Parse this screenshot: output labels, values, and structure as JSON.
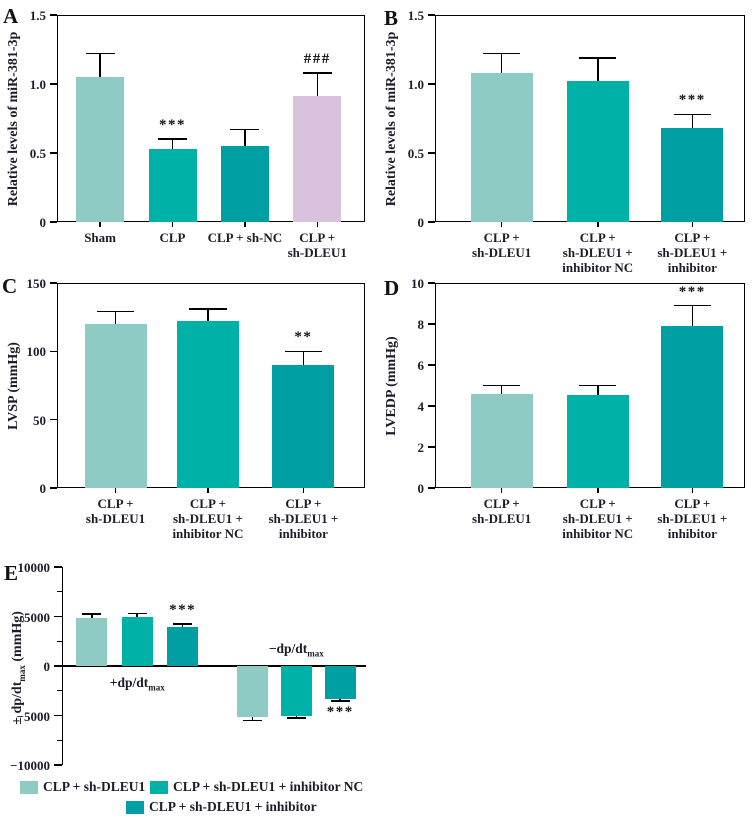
{
  "figure_title": "",
  "colors": {
    "light": "#8ecbc5",
    "teal": "#00b1a7",
    "tealDark": "#009fa3",
    "pink": "#d9c2de",
    "axis": "#000000",
    "text": "#1c1c2a",
    "sig": "#111111"
  },
  "chart_data": [
    {
      "panel": "A",
      "type": "bar",
      "title": "",
      "ylabel": "Relative levels of miR-381-3p",
      "xlabel": "",
      "ylim": [
        0,
        1.5
      ],
      "yticks": [
        0,
        0.5,
        1.0,
        1.5
      ],
      "ytick_labels": [
        "0",
        "0.5",
        "1.0",
        "1.5"
      ],
      "categories": [
        "Sham",
        "CLP",
        "CLP + sh-NC",
        "CLP + sh-DLEU1"
      ],
      "categories_lines": [
        [
          "Sham"
        ],
        [
          "CLP"
        ],
        [
          "CLP + sh-NC"
        ],
        [
          "CLP +",
          "sh-DLEU1"
        ]
      ],
      "values": [
        1.05,
        0.53,
        0.55,
        0.91
      ],
      "errors": [
        0.17,
        0.07,
        0.12,
        0.17
      ],
      "annotations": [
        "",
        "***",
        "",
        "###"
      ],
      "bar_color_keys": [
        "light",
        "teal",
        "tealDark",
        "pink"
      ]
    },
    {
      "panel": "B",
      "type": "bar",
      "title": "",
      "ylabel": "Relative levels of miR-381-3p",
      "xlabel": "",
      "ylim": [
        0,
        1.5
      ],
      "yticks": [
        0,
        0.5,
        1.0,
        1.5
      ],
      "ytick_labels": [
        "0",
        "0.5",
        "1.0",
        "1.5"
      ],
      "categories": [
        "CLP + sh-DLEU1",
        "CLP + sh-DLEU1 + inhibitor NC",
        "CLP + sh-DLEU1 + inhibitor"
      ],
      "categories_lines": [
        [
          "CLP +",
          "sh-DLEU1"
        ],
        [
          "CLP +",
          "sh-DLEU1 +",
          "inhibitor NC"
        ],
        [
          "CLP +",
          "sh-DLEU1 +",
          "inhibitor"
        ]
      ],
      "values": [
        1.08,
        1.02,
        0.68
      ],
      "errors": [
        0.14,
        0.17,
        0.1
      ],
      "annotations": [
        "",
        "",
        "***"
      ],
      "bar_color_keys": [
        "light",
        "teal",
        "tealDark"
      ]
    },
    {
      "panel": "C",
      "type": "bar",
      "title": "",
      "ylabel": "LVSP (mmHg)",
      "xlabel": "",
      "ylim": [
        0,
        150
      ],
      "yticks": [
        0,
        50,
        100,
        150
      ],
      "ytick_labels": [
        "0",
        "50",
        "100",
        "150"
      ],
      "categories": [
        "CLP + sh-DLEU1",
        "CLP + sh-DLEU1 + inhibitor NC",
        "CLP + sh-DLEU1 + inhibitor"
      ],
      "categories_lines": [
        [
          "CLP +",
          "sh-DLEU1"
        ],
        [
          "CLP +",
          "sh-DLEU1 +",
          "inhibitor NC"
        ],
        [
          "CLP +",
          "sh-DLEU1 +",
          "inhibitor"
        ]
      ],
      "values": [
        120,
        122,
        90
      ],
      "errors": [
        9,
        9,
        10
      ],
      "annotations": [
        "",
        "",
        "**"
      ],
      "bar_color_keys": [
        "light",
        "teal",
        "tealDark"
      ]
    },
    {
      "panel": "D",
      "type": "bar",
      "title": "",
      "ylabel": "LVEDP (mmHg)",
      "xlabel": "",
      "ylim": [
        0,
        10
      ],
      "yticks": [
        0,
        2,
        4,
        6,
        8,
        10
      ],
      "ytick_labels": [
        "0",
        "2",
        "4",
        "6",
        "8",
        "10"
      ],
      "categories": [
        "CLP + sh-DLEU1",
        "CLP + sh-DLEU1 + inhibitor NC",
        "CLP + sh-DLEU1 + inhibitor"
      ],
      "categories_lines": [
        [
          "CLP +",
          "sh-DLEU1"
        ],
        [
          "CLP +",
          "sh-DLEU1 +",
          "inhibitor NC"
        ],
        [
          "CLP +",
          "sh-DLEU1 +",
          "inhibitor"
        ]
      ],
      "values": [
        4.6,
        4.55,
        7.9
      ],
      "errors": [
        0.4,
        0.45,
        1.0
      ],
      "annotations": [
        "",
        "",
        "***"
      ],
      "bar_color_keys": [
        "light",
        "teal",
        "tealDark"
      ]
    },
    {
      "panel": "E",
      "type": "bar",
      "title": "",
      "ylabel": "± dp/dt_max (mmHg)",
      "ylabel_parts": {
        "prefix": "± dp/dt",
        "sub": "max",
        "suffix": " (mmHg)"
      },
      "xlabel": "",
      "ylim": [
        -10000,
        10000
      ],
      "yticks": [
        -10000,
        -5000,
        0,
        5000,
        10000
      ],
      "ytick_labels": [
        "−10000",
        "−5000",
        "0",
        "5000",
        "10000"
      ],
      "minor_ticks": [
        -7500,
        -2500,
        2500,
        7500
      ],
      "categories": [
        "+dp/dt_max",
        "−dp/dt_max"
      ],
      "group_labels": [
        {
          "main": "+dp/dt",
          "sub": "max",
          "position": "below-axis"
        },
        {
          "main": "−dp/dt",
          "sub": "max",
          "position": "above-axis"
        }
      ],
      "series": [
        {
          "name": "CLP + sh-DLEU1",
          "color_key": "light",
          "values": [
            4850,
            -5200
          ],
          "errors": [
            400,
            300
          ]
        },
        {
          "name": "CLP + sh-DLEU1 + inhibitor NC",
          "color_key": "teal",
          "values": [
            4900,
            -5000
          ],
          "errors": [
            400,
            250
          ]
        },
        {
          "name": "CLP + sh-DLEU1 + inhibitor",
          "color_key": "tealDark",
          "values": [
            3950,
            -3300
          ],
          "errors": [
            300,
            250
          ]
        }
      ],
      "annotations": [
        {
          "category_index": 0,
          "series_index": 2,
          "text": "***",
          "side": "above"
        },
        {
          "category_index": 1,
          "series_index": 2,
          "text": "***",
          "side": "below"
        }
      ]
    }
  ],
  "legend": {
    "items": [
      {
        "color_key": "light",
        "label": "CLP + sh-DLEU1"
      },
      {
        "color_key": "teal",
        "label": "CLP + sh-DLEU1 + inhibitor NC"
      },
      {
        "color_key": "tealDark",
        "label": "CLP + sh-DLEU1 + inhibitor"
      }
    ]
  }
}
